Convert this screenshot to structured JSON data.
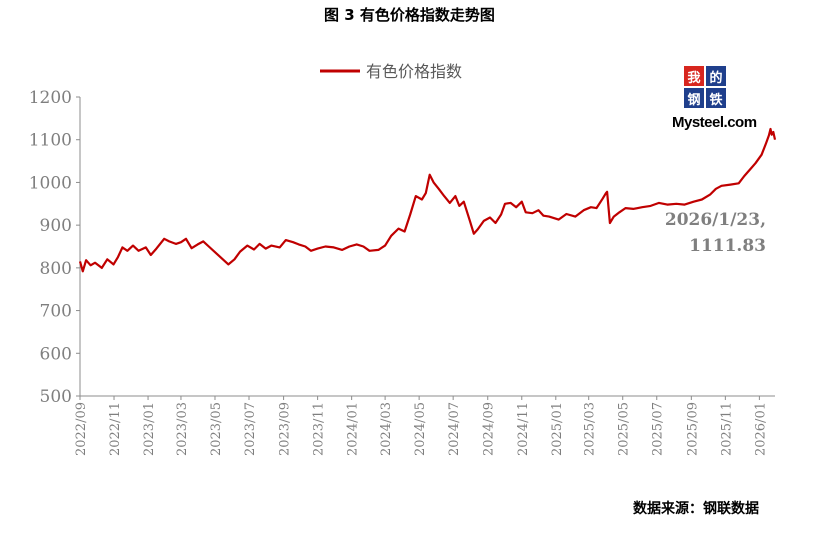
{
  "title": "图 3  有色价格指数走势图",
  "source": "数据来源：钢联数据",
  "logo": {
    "chars": [
      "我",
      "的",
      "钢",
      "铁"
    ],
    "text": "Mysteel.com"
  },
  "chart_data": {
    "type": "line",
    "title": "图 3  有色价格指数走势图",
    "legend": {
      "label": "有色价格指数",
      "position": "top-center"
    },
    "color": "#c00000",
    "ylim": [
      500,
      1200
    ],
    "yticks": [
      500,
      600,
      700,
      800,
      900,
      1000,
      1100,
      1200
    ],
    "xlim": [
      "2022-09",
      "2026-01-29"
    ],
    "xticks": [
      "2022/09",
      "2022/11",
      "2023/01",
      "2023/03",
      "2023/05",
      "2023/07",
      "2023/09",
      "2023/11",
      "2024/01",
      "2024/03",
      "2024/05",
      "2024/07",
      "2024/09",
      "2024/11",
      "2025/01",
      "2025/03",
      "2025/05",
      "2025/07",
      "2025/09",
      "2025/11",
      "2026/01"
    ],
    "grid": false,
    "annotation": {
      "text": [
        "2026/1/23,",
        "1111.83"
      ],
      "x": "2026-01-23",
      "y": 1111.83
    },
    "series": [
      {
        "name": "有色价格指数",
        "points": [
          [
            "2022-09-01",
            815
          ],
          [
            "2022-09-06",
            792
          ],
          [
            "2022-09-12",
            818
          ],
          [
            "2022-09-20",
            806
          ],
          [
            "2022-09-28",
            812
          ],
          [
            "2022-10-10",
            800
          ],
          [
            "2022-10-20",
            820
          ],
          [
            "2022-10-31",
            808
          ],
          [
            "2022-11-08",
            825
          ],
          [
            "2022-11-16",
            848
          ],
          [
            "2022-11-25",
            840
          ],
          [
            "2022-12-05",
            852
          ],
          [
            "2022-12-15",
            840
          ],
          [
            "2022-12-28",
            848
          ],
          [
            "2023-01-06",
            830
          ],
          [
            "2023-01-16",
            845
          ],
          [
            "2023-01-30",
            868
          ],
          [
            "2023-02-08",
            862
          ],
          [
            "2023-02-20",
            856
          ],
          [
            "2023-03-01",
            860
          ],
          [
            "2023-03-10",
            868
          ],
          [
            "2023-03-20",
            846
          ],
          [
            "2023-03-31",
            855
          ],
          [
            "2023-04-10",
            862
          ],
          [
            "2023-04-20",
            850
          ],
          [
            "2023-05-05",
            832
          ],
          [
            "2023-05-15",
            820
          ],
          [
            "2023-05-25",
            808
          ],
          [
            "2023-06-05",
            820
          ],
          [
            "2023-06-15",
            838
          ],
          [
            "2023-06-28",
            852
          ],
          [
            "2023-07-10",
            843
          ],
          [
            "2023-07-20",
            856
          ],
          [
            "2023-07-31",
            845
          ],
          [
            "2023-08-10",
            852
          ],
          [
            "2023-08-25",
            848
          ],
          [
            "2023-09-05",
            865
          ],
          [
            "2023-09-18",
            860
          ],
          [
            "2023-09-28",
            855
          ],
          [
            "2023-10-10",
            850
          ],
          [
            "2023-10-20",
            840
          ],
          [
            "2023-11-01",
            845
          ],
          [
            "2023-11-15",
            850
          ],
          [
            "2023-11-30",
            848
          ],
          [
            "2023-12-15",
            842
          ],
          [
            "2023-12-28",
            850
          ],
          [
            "2024-01-10",
            855
          ],
          [
            "2024-01-22",
            850
          ],
          [
            "2024-02-02",
            840
          ],
          [
            "2024-02-18",
            842
          ],
          [
            "2024-03-01",
            852
          ],
          [
            "2024-03-12",
            875
          ],
          [
            "2024-03-25",
            892
          ],
          [
            "2024-04-05",
            885
          ],
          [
            "2024-04-15",
            925
          ],
          [
            "2024-04-25",
            968
          ],
          [
            "2024-05-06",
            960
          ],
          [
            "2024-05-13",
            975
          ],
          [
            "2024-05-20",
            1018
          ],
          [
            "2024-05-27",
            1000
          ],
          [
            "2024-06-05",
            985
          ],
          [
            "2024-06-15",
            968
          ],
          [
            "2024-06-25",
            952
          ],
          [
            "2024-07-05",
            968
          ],
          [
            "2024-07-12",
            945
          ],
          [
            "2024-07-20",
            955
          ],
          [
            "2024-07-31",
            910
          ],
          [
            "2024-08-07",
            880
          ],
          [
            "2024-08-14",
            890
          ],
          [
            "2024-08-25",
            910
          ],
          [
            "2024-09-05",
            918
          ],
          [
            "2024-09-15",
            905
          ],
          [
            "2024-09-25",
            925
          ],
          [
            "2024-10-02",
            950
          ],
          [
            "2024-10-12",
            952
          ],
          [
            "2024-10-22",
            942
          ],
          [
            "2024-11-01",
            955
          ],
          [
            "2024-11-08",
            930
          ],
          [
            "2024-11-20",
            928
          ],
          [
            "2024-12-01",
            935
          ],
          [
            "2024-12-10",
            922
          ],
          [
            "2024-12-20",
            920
          ],
          [
            "2025-01-06",
            913
          ],
          [
            "2025-01-20",
            926
          ],
          [
            "2025-02-05",
            920
          ],
          [
            "2025-02-20",
            935
          ],
          [
            "2025-03-05",
            942
          ],
          [
            "2025-03-15",
            940
          ],
          [
            "2025-03-26",
            962
          ],
          [
            "2025-04-01",
            975
          ],
          [
            "2025-04-03",
            978
          ],
          [
            "2025-04-08",
            905
          ],
          [
            "2025-04-15",
            920
          ],
          [
            "2025-04-25",
            930
          ],
          [
            "2025-05-06",
            940
          ],
          [
            "2025-05-20",
            938
          ],
          [
            "2025-06-05",
            942
          ],
          [
            "2025-06-20",
            945
          ],
          [
            "2025-07-05",
            952
          ],
          [
            "2025-07-20",
            948
          ],
          [
            "2025-08-05",
            950
          ],
          [
            "2025-08-20",
            948
          ],
          [
            "2025-09-05",
            955
          ],
          [
            "2025-09-20",
            960
          ],
          [
            "2025-10-05",
            972
          ],
          [
            "2025-10-15",
            985
          ],
          [
            "2025-10-25",
            992
          ],
          [
            "2025-11-10",
            995
          ],
          [
            "2025-11-25",
            998
          ],
          [
            "2025-12-05",
            1015
          ],
          [
            "2025-12-15",
            1030
          ],
          [
            "2025-12-25",
            1045
          ],
          [
            "2026-01-05",
            1065
          ],
          [
            "2026-01-13",
            1092
          ],
          [
            "2026-01-18",
            1110
          ],
          [
            "2026-01-21",
            1125
          ],
          [
            "2026-01-23",
            1111.83
          ],
          [
            "2026-01-26",
            1118
          ],
          [
            "2026-01-29",
            1100
          ]
        ]
      }
    ]
  }
}
